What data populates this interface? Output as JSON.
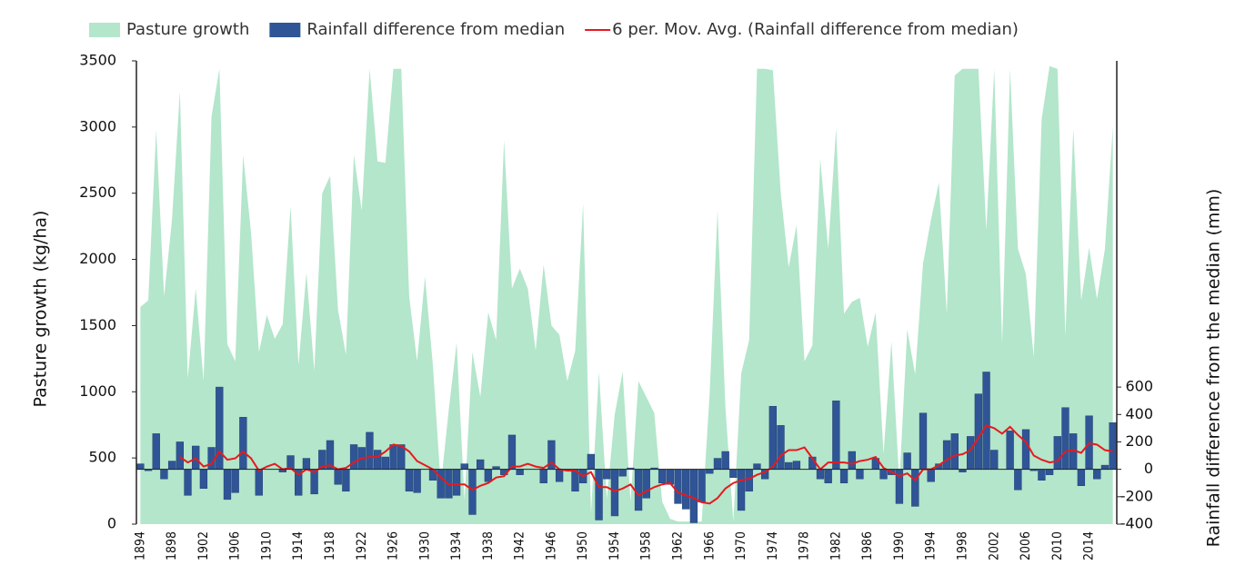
{
  "chart_data": {
    "type": "combo",
    "y_label": "Pasture growth (kg/ha)",
    "y2_label": "Rainfall difference from the median (mm)",
    "categories": [
      "1894",
      null,
      null,
      null,
      "1898",
      null,
      null,
      null,
      "1902",
      null,
      null,
      null,
      "1906",
      null,
      null,
      null,
      "1910",
      null,
      null,
      null,
      "1914",
      null,
      null,
      null,
      "1918",
      null,
      null,
      null,
      "1922",
      null,
      null,
      null,
      "1926",
      null,
      null,
      null,
      "1930",
      null,
      null,
      null,
      "1934",
      null,
      null,
      null,
      "1938",
      null,
      null,
      null,
      "1942",
      null,
      null,
      null,
      "1946",
      null,
      null,
      null,
      "1950",
      null,
      null,
      null,
      "1954",
      null,
      null,
      null,
      "1958",
      null,
      null,
      null,
      "1962",
      null,
      null,
      null,
      "1966",
      null,
      null,
      null,
      "1970",
      null,
      null,
      null,
      "1974",
      null,
      null,
      null,
      "1978",
      null,
      null,
      null,
      "1982",
      null,
      null,
      null,
      "1986",
      null,
      null,
      null,
      "1990",
      null,
      null,
      null,
      "1994",
      null,
      null,
      null,
      "1998",
      null,
      null,
      null,
      "2002",
      null,
      null,
      null,
      "2006",
      null,
      null,
      null,
      "2010",
      null,
      null,
      null,
      "2014",
      null,
      null,
      null
    ],
    "ylim": [
      0,
      3500
    ],
    "yticks": [
      0,
      500,
      1000,
      1500,
      2000,
      2500,
      3000,
      3500
    ],
    "y2lim": [
      -400,
      2980
    ],
    "y2ticks": [
      -400,
      -200,
      0,
      200,
      400,
      600
    ],
    "series": [
      {
        "name": "Pasture growth",
        "type": "area",
        "color": "#b3e6cb",
        "values": [
          1640,
          1690,
          2980,
          1720,
          2300,
          3270,
          1100,
          1780,
          1080,
          3080,
          3440,
          1360,
          1230,
          2790,
          2200,
          1300,
          1580,
          1400,
          1510,
          2400,
          1200,
          1900,
          1160,
          2500,
          2630,
          1620,
          1280,
          2790,
          2370,
          3440,
          2740,
          2730,
          3440,
          3440,
          1720,
          1230,
          1870,
          1200,
          290,
          860,
          1370,
          180,
          1300,
          960,
          1600,
          1390,
          2900,
          1780,
          1930,
          1780,
          1310,
          1960,
          1500,
          1430,
          1080,
          1310,
          2420,
          80,
          1150,
          190,
          830,
          1150,
          170,
          1080,
          960,
          840,
          170,
          40,
          20,
          20,
          20,
          20,
          980,
          2370,
          880,
          20,
          1140,
          1390,
          3440,
          3440,
          3430,
          2500,
          1940,
          2260,
          1230,
          1350,
          2760,
          2080,
          2990,
          1590,
          1680,
          1710,
          1340,
          1600,
          530,
          1380,
          310,
          1470,
          1130,
          1970,
          2300,
          2580,
          1590,
          3390,
          3440,
          3440,
          3440,
          2220,
          3440,
          1360,
          3440,
          2080,
          1890,
          1260,
          3060,
          3460,
          3440,
          1420,
          2990,
          1690,
          2090,
          1700,
          2080,
          3000
        ]
      },
      {
        "name": "Rainfall difference from median",
        "type": "bar",
        "axis": "y2",
        "color": "#2f5597",
        "values": [
          40,
          -10,
          260,
          -70,
          60,
          200,
          -190,
          170,
          -140,
          160,
          600,
          -220,
          -170,
          380,
          0,
          -190,
          0,
          0,
          -20,
          100,
          -190,
          80,
          -180,
          140,
          210,
          -110,
          -160,
          180,
          160,
          270,
          140,
          90,
          180,
          180,
          -160,
          -170,
          0,
          -80,
          -210,
          -210,
          -190,
          40,
          -330,
          70,
          -90,
          20,
          -40,
          250,
          -40,
          0,
          0,
          -100,
          210,
          -90,
          -10,
          -160,
          -100,
          110,
          -370,
          -70,
          -340,
          -50,
          10,
          -300,
          -210,
          10,
          -100,
          -110,
          -250,
          -290,
          -390,
          -240,
          -30,
          80,
          130,
          -60,
          -300,
          -160,
          40,
          -70,
          460,
          320,
          50,
          60,
          0,
          90,
          -70,
          -100,
          500,
          -100,
          130,
          -70,
          0,
          80,
          -70,
          -40,
          -250,
          120,
          -270,
          410,
          -90,
          40,
          210,
          260,
          -20,
          240,
          550,
          710,
          140,
          0,
          280,
          -150,
          290,
          -10,
          -80,
          -40,
          240,
          450,
          260,
          -120,
          390,
          -70,
          30,
          340
        ]
      },
      {
        "name": "6 per. Mov. Avg. (Rainfall difference from median)",
        "type": "line",
        "axis": "y2",
        "color": "#e8191e",
        "values": [
          null,
          null,
          null,
          null,
          null,
          90,
          50,
          80,
          20,
          40,
          130,
          70,
          80,
          130,
          80,
          -10,
          20,
          40,
          0,
          10,
          -40,
          0,
          -20,
          20,
          30,
          0,
          10,
          50,
          80,
          90,
          90,
          130,
          180,
          170,
          130,
          60,
          30,
          0,
          -60,
          -110,
          -110,
          -110,
          -150,
          -120,
          -100,
          -60,
          -50,
          20,
          20,
          40,
          20,
          10,
          50,
          0,
          -10,
          -10,
          -50,
          -20,
          -130,
          -130,
          -160,
          -140,
          -110,
          -190,
          -160,
          -130,
          -110,
          -100,
          -170,
          -190,
          -210,
          -240,
          -250,
          -210,
          -140,
          -100,
          -80,
          -70,
          -40,
          -20,
          20,
          100,
          140,
          140,
          160,
          80,
          0,
          50,
          50,
          50,
          40,
          60,
          70,
          90,
          10,
          -20,
          -50,
          -30,
          -80,
          0,
          0,
          30,
          70,
          100,
          110,
          140,
          230,
          320,
          300,
          260,
          310,
          250,
          200,
          100,
          70,
          50,
          60,
          130,
          140,
          120,
          190,
          180,
          140,
          130
        ]
      }
    ]
  }
}
